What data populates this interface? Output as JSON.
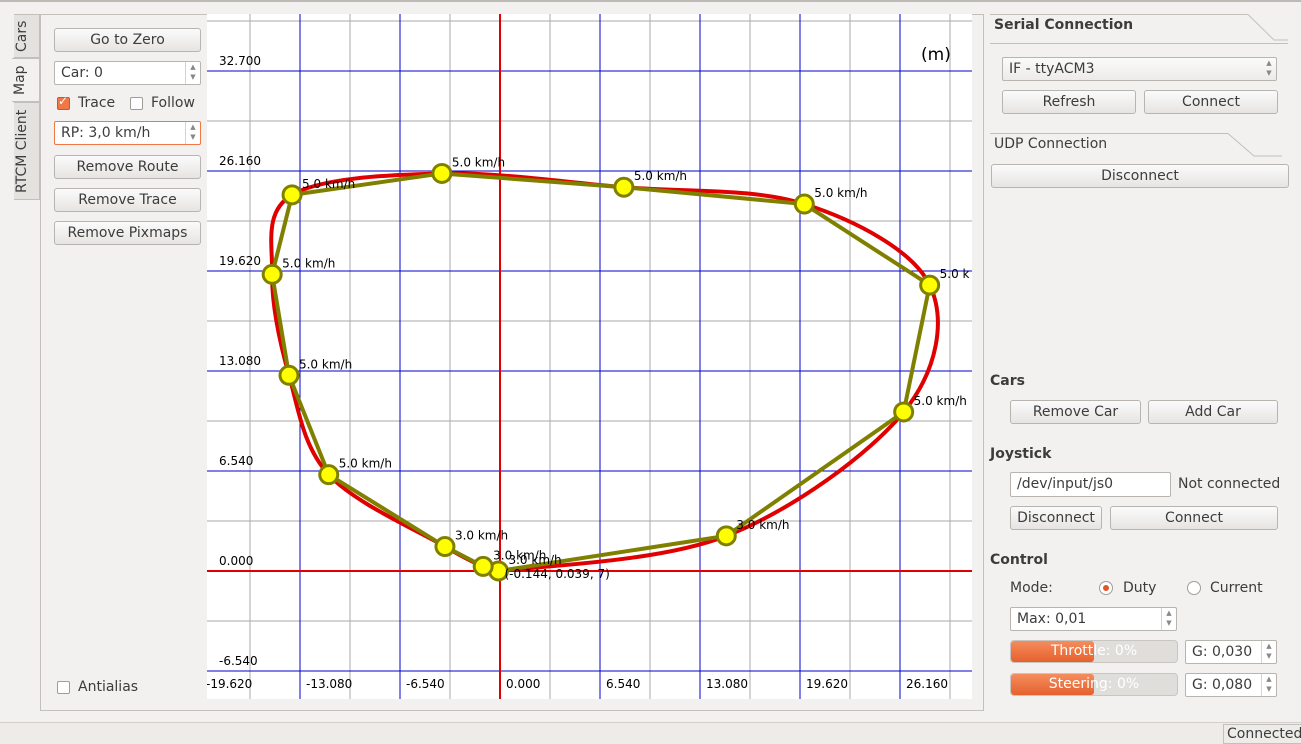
{
  "tabs": [
    {
      "label": "Cars"
    },
    {
      "label": "Map"
    },
    {
      "label": "RTCM Client"
    }
  ],
  "controls": {
    "go_to_zero": "Go to Zero",
    "car_spin": "Car: 0",
    "trace_label": "Trace",
    "follow_label": "Follow",
    "rp_spin": "RP: 3,0 km/h",
    "remove_route": "Remove Route",
    "remove_trace": "Remove Trace",
    "remove_pixmaps": "Remove Pixmaps",
    "antialias_label": "Antialias"
  },
  "map": {
    "unit": "(m)",
    "y_ticks": [
      "32.700",
      "26.160",
      "19.620",
      "13.080",
      "6.540",
      "0.000",
      "-6.540"
    ],
    "x_ticks": [
      "-19.620",
      "-13.080",
      "-6.540",
      "0.000",
      "6.540",
      "13.080",
      "19.620",
      "26.160"
    ],
    "car_label": "(-0.144, 0.039, 7)",
    "route": [
      {
        "x": -13.6,
        "y": 24.6,
        "speed": "5.0 km/h"
      },
      {
        "x": -3.8,
        "y": 26.0,
        "speed": "5.0 km/h"
      },
      {
        "x": 8.1,
        "y": 25.1,
        "speed": "5.0 km/h"
      },
      {
        "x": 19.9,
        "y": 24.0,
        "speed": "5.0 km/h"
      },
      {
        "x": 28.1,
        "y": 18.7,
        "speed": "5.0 k"
      },
      {
        "x": 26.4,
        "y": 10.4,
        "speed": "5.0 km/h"
      },
      {
        "x": 14.8,
        "y": 2.3,
        "speed": "3.0 km/h"
      },
      {
        "x": -0.1,
        "y": 0.0,
        "speed": "3.0 km/h"
      },
      {
        "x": -1.1,
        "y": 0.3,
        "speed": "3.0 km/h"
      },
      {
        "x": -3.6,
        "y": 1.6,
        "speed": "3.0 km/h"
      },
      {
        "x": -11.2,
        "y": 6.3,
        "speed": "5.0 km/h"
      },
      {
        "x": -13.8,
        "y": 12.8,
        "speed": "5.0 km/h"
      },
      {
        "x": -14.9,
        "y": 19.4,
        "speed": "5.0 km/h"
      }
    ]
  },
  "serial": {
    "title": "Serial Connection",
    "port": "IF - ttyACM3",
    "refresh": "Refresh",
    "connect": "Connect"
  },
  "udp": {
    "title": "UDP Connection",
    "disconnect": "Disconnect"
  },
  "cars": {
    "title": "Cars",
    "remove_car": "Remove Car",
    "add_car": "Add Car"
  },
  "joystick": {
    "title": "Joystick",
    "device": "/dev/input/js0",
    "status": "Not connected",
    "disconnect": "Disconnect",
    "connect": "Connect"
  },
  "control": {
    "title": "Control",
    "mode_label": "Mode:",
    "duty_label": "Duty",
    "current_label": "Current",
    "max": "Max: 0,01",
    "throttle": {
      "label": "Throttle: 0%",
      "value": 0.5
    },
    "throttle_gain": "G: 0,030",
    "steering": {
      "label": "Steering: 0%",
      "value": 0.5
    },
    "steering_gain": "G: 0,080"
  },
  "statusbar": {
    "status": "Connected"
  },
  "colors": {
    "accent": "#f07746",
    "grid_major": "#0000cc",
    "grid_minor": "#aaaaaa",
    "axis": "#e00000",
    "trace": "#e00000",
    "route_line": "#808000",
    "route_point": "#ffff00"
  }
}
